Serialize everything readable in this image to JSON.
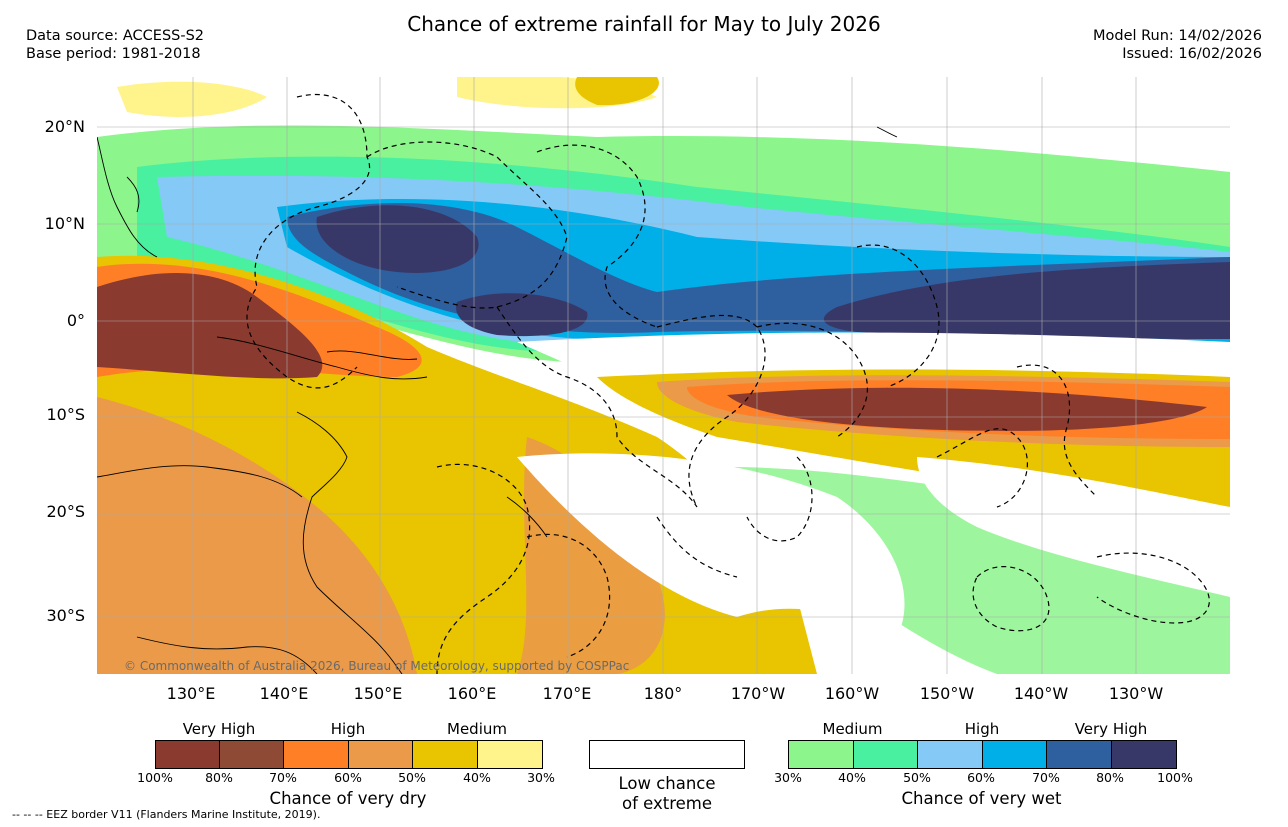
{
  "header": {
    "title": "Chance of extreme rainfall for May to July 2026",
    "data_source": "Data source: ACCESS-S2",
    "base_period": "Base period: 1981-2018",
    "model_run": "Model Run: 14/02/2026",
    "issued": "Issued: 16/02/2026"
  },
  "map": {
    "lat_labels": [
      "20°N",
      "10°N",
      "0°",
      "10°S",
      "20°S",
      "30°S"
    ],
    "lon_labels": [
      "130°E",
      "140°E",
      "150°E",
      "160°E",
      "170°E",
      "180°",
      "170°W",
      "160°W",
      "150°W",
      "140°W",
      "130°W"
    ],
    "copyright": "© Commonwealth of Australia 2026, Bureau of Meteorology, supported by COSPPac"
  },
  "legend": {
    "dry": {
      "levels": [
        "Very High",
        "High",
        "Medium"
      ],
      "ticks": [
        "100%",
        "80%",
        "70%",
        "60%",
        "50%",
        "40%",
        "30%"
      ],
      "colors": [
        "#8b3a2f",
        "#8f4a35",
        "#ff7f27",
        "#ea9a48",
        "#e9c400",
        "#fff38c"
      ],
      "caption": "Chance of very dry"
    },
    "low": {
      "line1": "Low chance",
      "line2": "of extreme",
      "color": "#ffffff"
    },
    "wet": {
      "levels": [
        "Medium",
        "High",
        "Very High"
      ],
      "ticks": [
        "30%",
        "40%",
        "50%",
        "60%",
        "70%",
        "80%",
        "100%"
      ],
      "colors": [
        "#8cf58c",
        "#48f0a0",
        "#85c9f6",
        "#00aee8",
        "#2e5f9e",
        "#383868"
      ],
      "caption": "Chance of very wet"
    },
    "eez_note": "--  --  -- EEZ border V11 (Flanders Marine Institute, 2019)."
  }
}
